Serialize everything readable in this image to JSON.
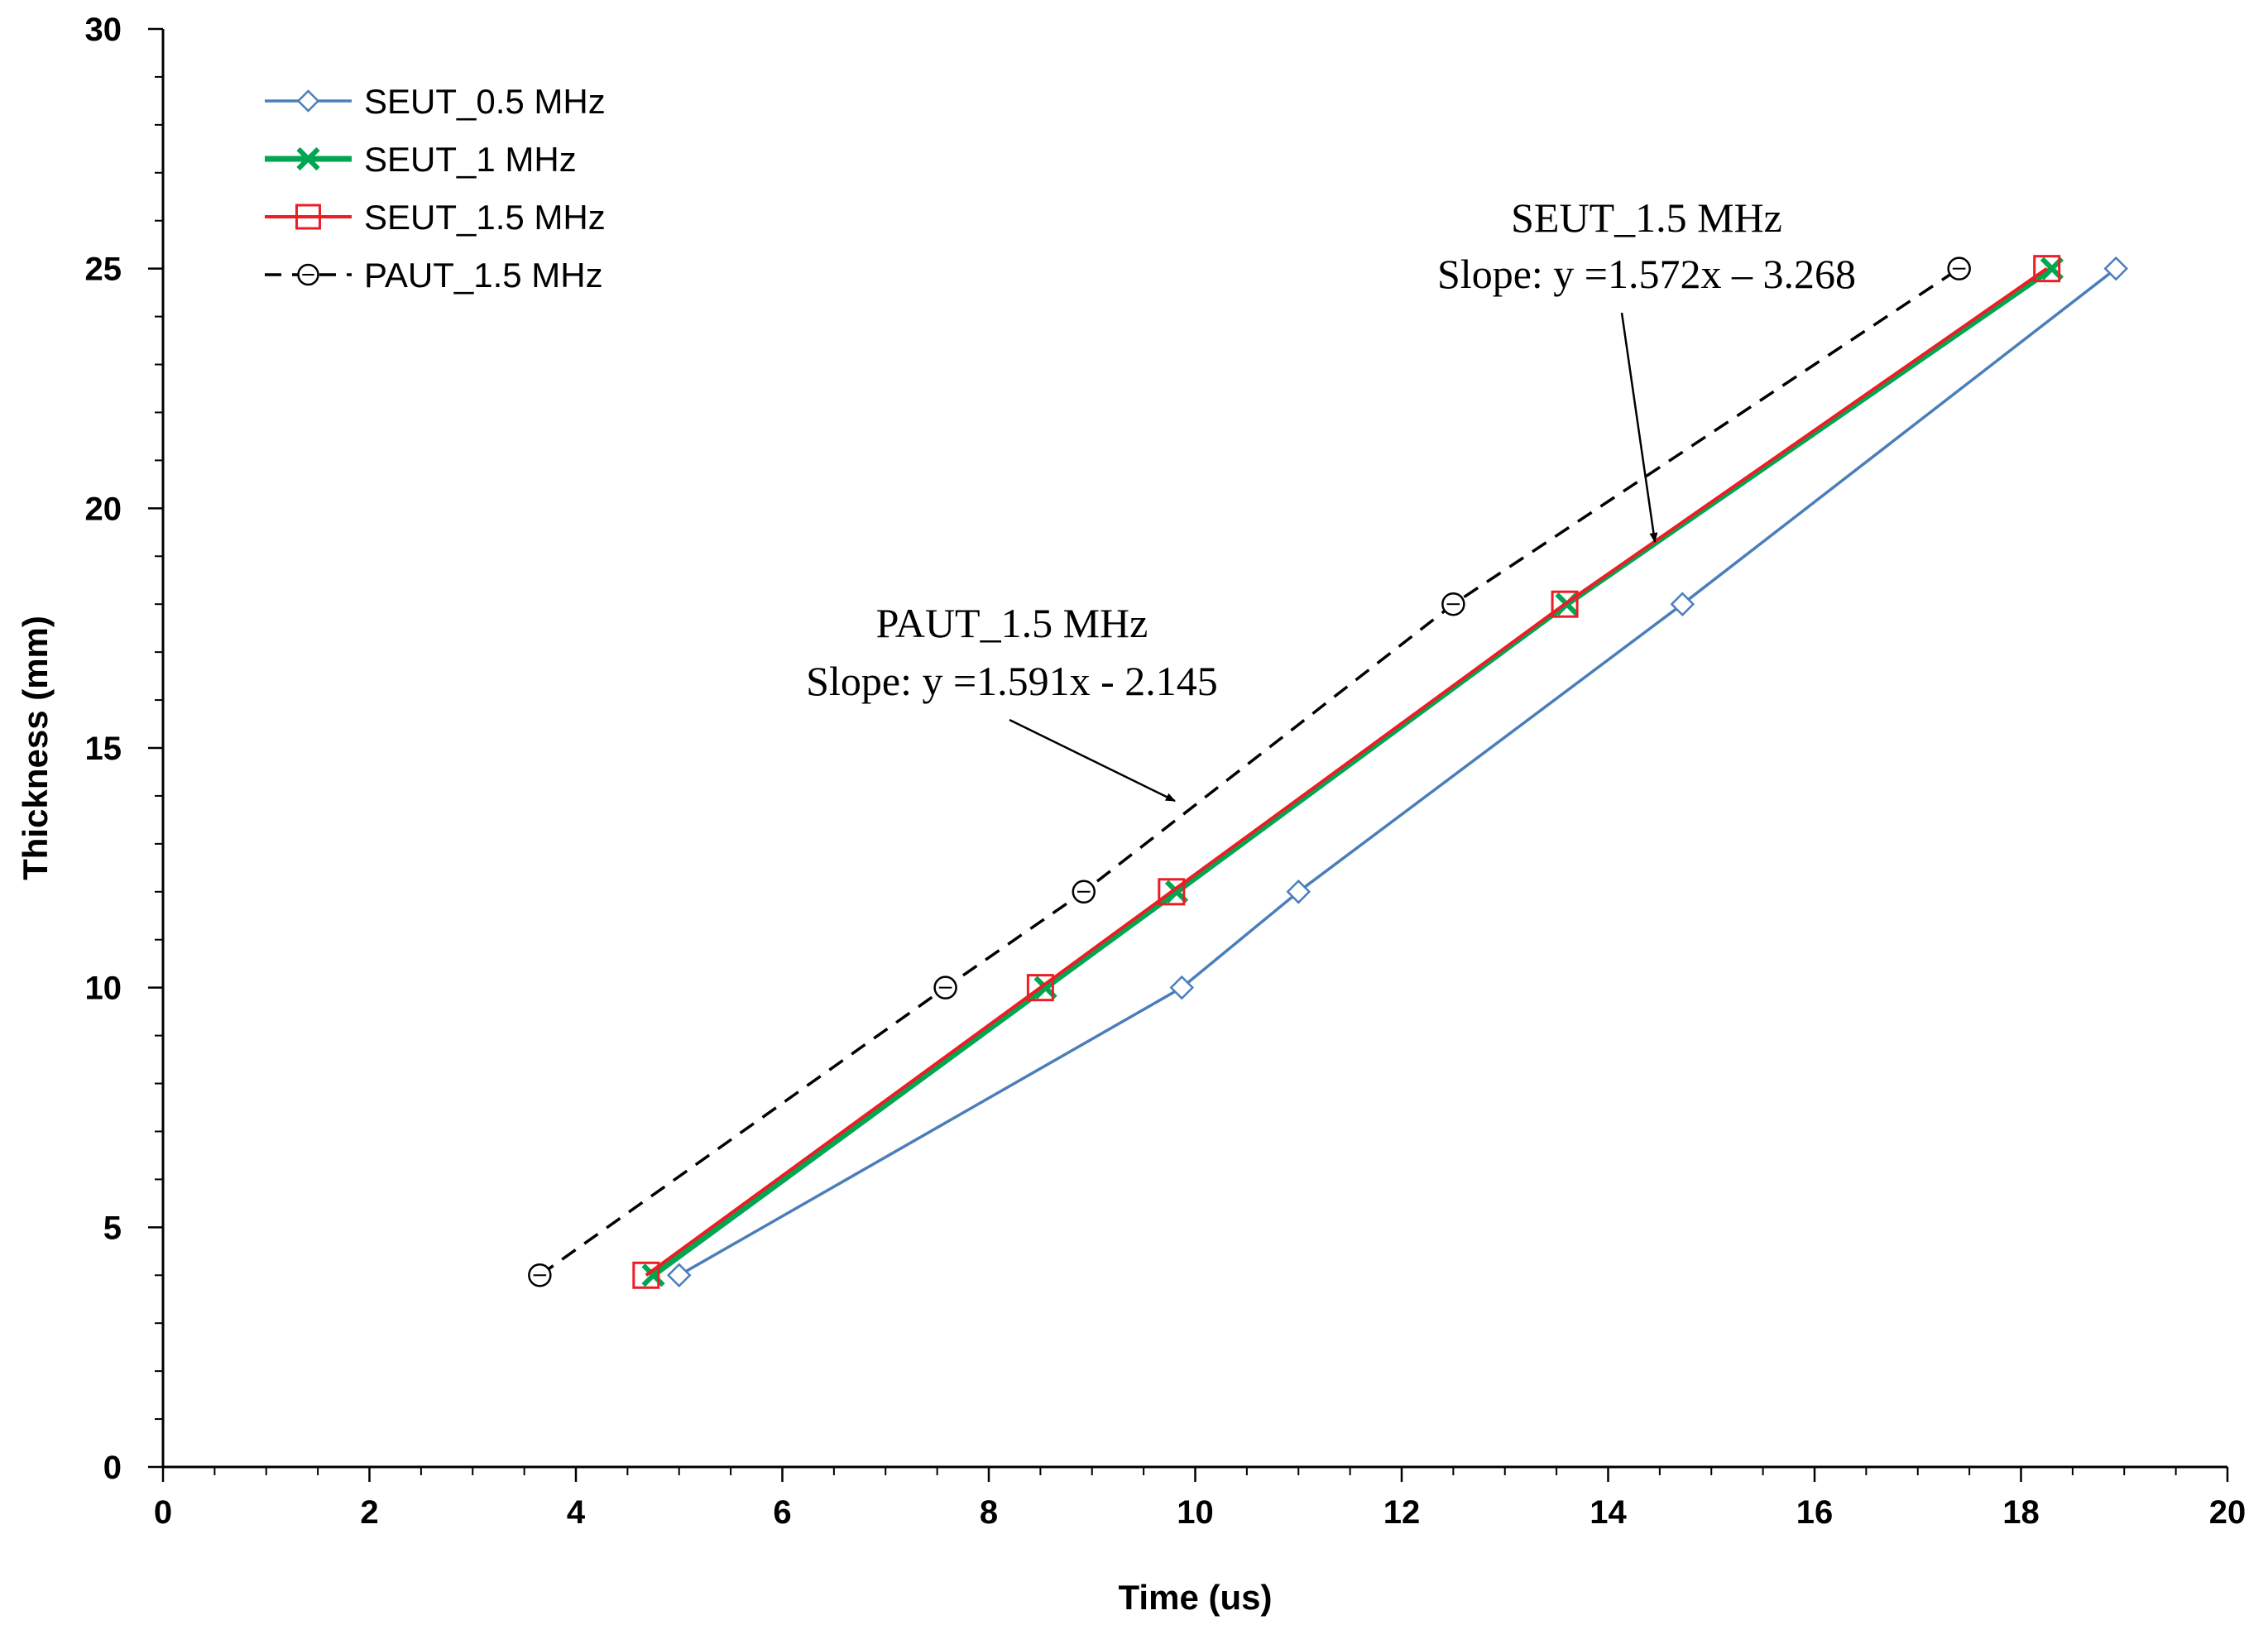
{
  "chart_data": {
    "type": "line",
    "xlabel": "Time (us)",
    "ylabel": "Thickness (mm)",
    "xlim": [
      0,
      20
    ],
    "ylim": [
      0,
      30
    ],
    "xticks": [
      "0",
      "2",
      "4",
      "6",
      "8",
      "10",
      "12",
      "14",
      "16",
      "18",
      "20"
    ],
    "yticks": [
      "0",
      "5",
      "10",
      "15",
      "20",
      "25",
      "30"
    ],
    "grid": false,
    "legend_position": "top-left",
    "series": [
      {
        "name": "SEUT_0.5 MHz",
        "color": "#4a7ebb",
        "marker": "diamond",
        "dash": "solid",
        "x": [
          5.0,
          9.87,
          11.0,
          14.72,
          18.92
        ],
        "y": [
          4,
          10,
          12,
          18,
          25
        ]
      },
      {
        "name": "SEUT_1 MHz",
        "color": "#00a651",
        "marker": "x",
        "dash": "solid",
        "x": [
          4.75,
          8.55,
          9.82,
          13.6,
          18.3
        ],
        "y": [
          4,
          10,
          12,
          18,
          25
        ]
      },
      {
        "name": "SEUT_1.5 MHz",
        "color": "#ee1c25",
        "marker": "square",
        "dash": "solid",
        "x": [
          4.68,
          8.5,
          9.77,
          13.58,
          18.25
        ],
        "y": [
          4,
          10,
          12,
          18,
          25
        ]
      },
      {
        "name": "PAUT_1.5 MHz",
        "color": "#000000",
        "marker": "circle",
        "dash": "dashed",
        "x": [
          3.65,
          7.58,
          8.92,
          12.5,
          17.4
        ],
        "y": [
          4,
          10,
          12,
          18,
          25
        ]
      }
    ],
    "annotations": [
      {
        "title": "SEUT_1.5 MHz",
        "equation": "Slope: y =1.572x – 3.268",
        "target": [
          14.4,
          19.5
        ]
      },
      {
        "title": "PAUT_1.5 MHz",
        "equation": "Slope: y =1.591x - 2.145",
        "target": [
          9.8,
          14.0
        ]
      }
    ]
  }
}
